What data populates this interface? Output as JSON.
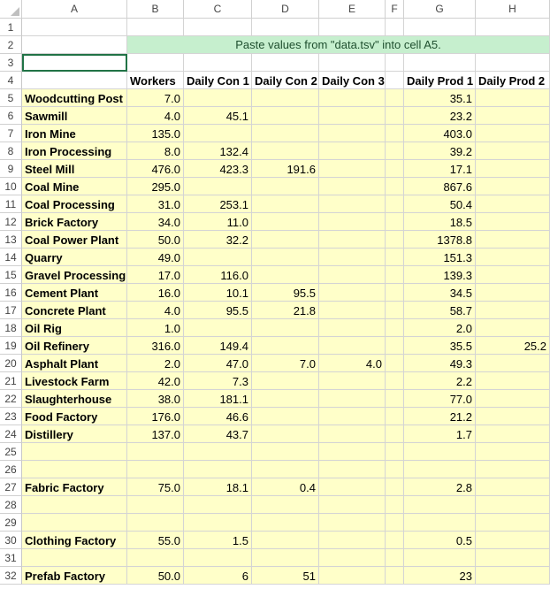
{
  "columns": [
    "A",
    "B",
    "C",
    "D",
    "E",
    "F",
    "G",
    "H"
  ],
  "row_numbers": [
    "1",
    "2",
    "3",
    "4",
    "5",
    "6",
    "7",
    "8",
    "9",
    "10",
    "11",
    "12",
    "13",
    "14",
    "15",
    "16",
    "17",
    "18",
    "19",
    "20",
    "21",
    "22",
    "23",
    "24",
    "25",
    "26",
    "27",
    "28",
    "29",
    "30",
    "31",
    "32"
  ],
  "banner": "Paste values from \"data.tsv\" into cell A5.",
  "headers": [
    "",
    "Workers",
    "Daily Con 1",
    "Daily Con 2",
    "Daily Con 3",
    "",
    "Daily Prod 1",
    "Daily Prod 2"
  ],
  "rows": [
    [
      "Woodcutting Post",
      "7.0",
      "",
      "",
      "",
      "",
      "35.1",
      ""
    ],
    [
      "Sawmill",
      "4.0",
      "45.1",
      "",
      "",
      "",
      "23.2",
      ""
    ],
    [
      "Iron Mine",
      "135.0",
      "",
      "",
      "",
      "",
      "403.0",
      ""
    ],
    [
      "Iron Processing",
      "8.0",
      "132.4",
      "",
      "",
      "",
      "39.2",
      ""
    ],
    [
      "Steel Mill",
      "476.0",
      "423.3",
      "191.6",
      "",
      "",
      "17.1",
      ""
    ],
    [
      "Coal Mine",
      "295.0",
      "",
      "",
      "",
      "",
      "867.6",
      ""
    ],
    [
      "Coal Processing",
      "31.0",
      "253.1",
      "",
      "",
      "",
      "50.4",
      ""
    ],
    [
      "Brick Factory",
      "34.0",
      "11.0",
      "",
      "",
      "",
      "18.5",
      ""
    ],
    [
      "Coal Power Plant",
      "50.0",
      "32.2",
      "",
      "",
      "",
      "1378.8",
      ""
    ],
    [
      "Quarry",
      "49.0",
      "",
      "",
      "",
      "",
      "151.3",
      ""
    ],
    [
      "Gravel Processing",
      "17.0",
      "116.0",
      "",
      "",
      "",
      "139.3",
      ""
    ],
    [
      "Cement Plant",
      "16.0",
      "10.1",
      "95.5",
      "",
      "",
      "34.5",
      ""
    ],
    [
      "Concrete Plant",
      "4.0",
      "95.5",
      "21.8",
      "",
      "",
      "58.7",
      ""
    ],
    [
      "Oil Rig",
      "1.0",
      "",
      "",
      "",
      "",
      "2.0",
      ""
    ],
    [
      "Oil Refinery",
      "316.0",
      "149.4",
      "",
      "",
      "",
      "35.5",
      "25.2"
    ],
    [
      "Asphalt Plant",
      "2.0",
      "47.0",
      "7.0",
      "4.0",
      "",
      "49.3",
      ""
    ],
    [
      "Livestock Farm",
      "42.0",
      "7.3",
      "",
      "",
      "",
      "2.2",
      ""
    ],
    [
      "Slaughterhouse",
      "38.0",
      "181.1",
      "",
      "",
      "",
      "77.0",
      ""
    ],
    [
      "Food Factory",
      "176.0",
      "46.6",
      "",
      "",
      "",
      "21.2",
      ""
    ],
    [
      "Distillery",
      "137.0",
      "43.7",
      "",
      "",
      "",
      "1.7",
      ""
    ],
    [
      "",
      "",
      "",
      "",
      "",
      "",
      "",
      ""
    ],
    [
      "",
      "",
      "",
      "",
      "",
      "",
      "",
      ""
    ],
    [
      "Fabric Factory",
      "75.0",
      "18.1",
      "0.4",
      "",
      "",
      "2.8",
      ""
    ],
    [
      "",
      "",
      "",
      "",
      "",
      "",
      "",
      ""
    ],
    [
      "",
      "",
      "",
      "",
      "",
      "",
      "",
      ""
    ],
    [
      "Clothing Factory",
      "55.0",
      "1.5",
      "",
      "",
      "",
      "0.5",
      ""
    ],
    [
      "",
      "",
      "",
      "",
      "",
      "",
      "",
      ""
    ],
    [
      "Prefab Factory",
      "50.0",
      "6",
      "51",
      "",
      "",
      "23",
      ""
    ]
  ],
  "colors": {
    "data_fill": "#ffffc9",
    "banner_fill": "#c6efce",
    "gridline": "#d4d4d4"
  }
}
